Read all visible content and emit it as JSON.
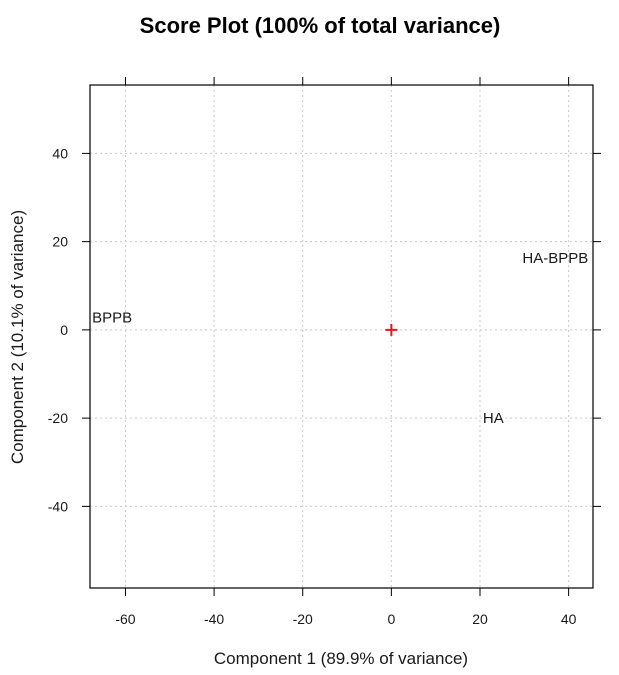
{
  "chart_data": {
    "type": "scatter",
    "title": "Score Plot (100% of total variance)",
    "xlabel": "Component 1 (89.9% of variance)",
    "ylabel": "Component 2 (10.1% of variance)",
    "xlim": [
      -68,
      45.5
    ],
    "ylim": [
      -58.5,
      55.5
    ],
    "xticks": [
      -60,
      -40,
      -20,
      0,
      20,
      40
    ],
    "yticks": [
      -40,
      -20,
      0,
      20,
      40
    ],
    "xtick_labels": [
      "-60",
      "-40",
      "-20",
      "0",
      "20",
      "40"
    ],
    "ytick_labels": [
      "-40",
      "-20",
      "0",
      "20",
      "40"
    ],
    "grid": true,
    "origin_marker": {
      "x": 0,
      "y": 0,
      "symbol": "+",
      "color": "#e8141b"
    },
    "points": [
      {
        "label": "BPPB",
        "x": -63,
        "y": 2.8
      },
      {
        "label": "HA-BPPB",
        "x": 37,
        "y": 16.3
      },
      {
        "label": "HA",
        "x": 23,
        "y": -20
      }
    ]
  }
}
